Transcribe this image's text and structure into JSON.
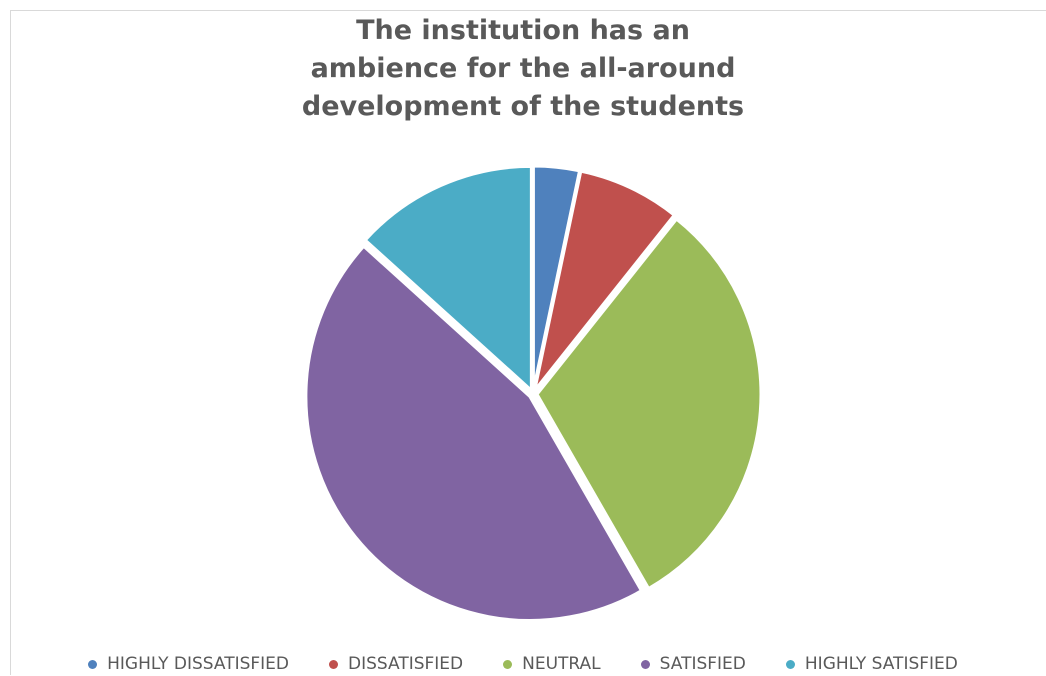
{
  "chart_data": {
    "type": "pie",
    "title_lines": [
      "The institution has an",
      "ambience for the all-around",
      "development of the students"
    ],
    "categories": [
      "HIGHLY DISSATISFIED",
      "DISSATISFIED",
      "NEUTRAL",
      "SATISFIED",
      "HIGHLY SATISFIED"
    ],
    "values": [
      3.3,
      7.4,
      31.0,
      45.0,
      13.3
    ],
    "unit": "%",
    "colors": [
      "#4f81bd",
      "#c0504d",
      "#9bbb59",
      "#8064a2",
      "#4bacc6"
    ],
    "legend_position": "bottom",
    "start_angle": "12 o'clock, clockwise"
  }
}
